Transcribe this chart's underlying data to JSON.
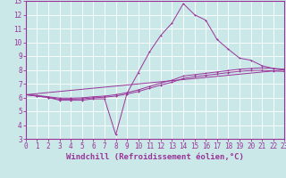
{
  "background_color": "#cbe8e8",
  "grid_color": "#ffffff",
  "line_color": "#993399",
  "xlabel": "Windchill (Refroidissement éolien,°C)",
  "ylim": [
    3,
    13
  ],
  "xlim": [
    0,
    23
  ],
  "yticks": [
    3,
    4,
    5,
    6,
    7,
    8,
    9,
    10,
    11,
    12,
    13
  ],
  "xticks": [
    0,
    1,
    2,
    3,
    4,
    5,
    6,
    7,
    8,
    9,
    10,
    11,
    12,
    13,
    14,
    15,
    16,
    17,
    18,
    19,
    20,
    21,
    22,
    23
  ],
  "series1_x": [
    0,
    1,
    2,
    3,
    4,
    5,
    6,
    7,
    8,
    9,
    10,
    11,
    12,
    13,
    14,
    15,
    16,
    17,
    18,
    19,
    20,
    21,
    22,
    23
  ],
  "series1_y": [
    6.2,
    6.1,
    6.0,
    5.8,
    5.8,
    5.8,
    5.9,
    5.9,
    3.3,
    6.3,
    7.8,
    9.3,
    10.5,
    11.4,
    12.8,
    12.0,
    11.6,
    10.2,
    9.5,
    8.85,
    8.7,
    8.3,
    8.1,
    8.0
  ],
  "series2_x": [
    0,
    1,
    2,
    3,
    4,
    5,
    6,
    7,
    8,
    9,
    10,
    11,
    12,
    13,
    14,
    15,
    16,
    17,
    18,
    19,
    20,
    21,
    22,
    23
  ],
  "series2_y": [
    6.2,
    6.15,
    6.05,
    5.95,
    5.95,
    5.97,
    6.05,
    6.1,
    6.2,
    6.35,
    6.55,
    6.8,
    7.05,
    7.25,
    7.55,
    7.65,
    7.75,
    7.85,
    7.95,
    8.05,
    8.1,
    8.15,
    8.1,
    8.05
  ],
  "series3_x": [
    0,
    1,
    2,
    3,
    4,
    5,
    6,
    7,
    8,
    9,
    10,
    11,
    12,
    13,
    14,
    15,
    16,
    17,
    18,
    19,
    20,
    21,
    22,
    23
  ],
  "series3_y": [
    6.2,
    6.1,
    6.0,
    5.88,
    5.88,
    5.9,
    5.97,
    6.02,
    6.1,
    6.25,
    6.43,
    6.67,
    6.9,
    7.1,
    7.38,
    7.5,
    7.6,
    7.7,
    7.8,
    7.9,
    7.95,
    7.97,
    7.92,
    7.88
  ],
  "series4_x": [
    0,
    23
  ],
  "series4_y": [
    6.2,
    8.0
  ],
  "xlabel_fontsize": 6.5,
  "tick_fontsize": 5.5
}
